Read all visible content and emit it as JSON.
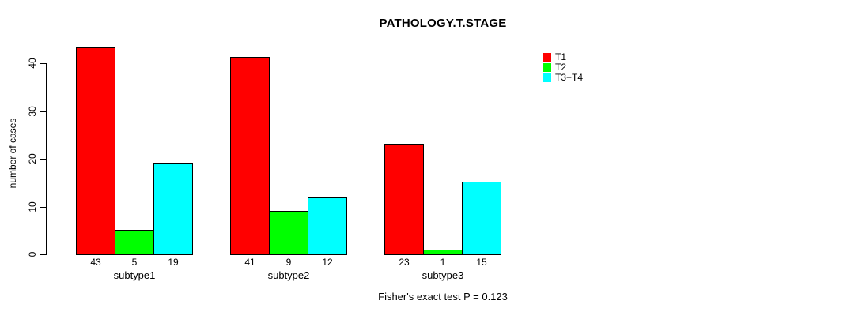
{
  "chart_data": {
    "type": "bar",
    "title": "PATHOLOGY.T.STAGE",
    "ylabel": "number of cases",
    "xlabel": "",
    "subtitle": "Fisher's exact test P = 0.123",
    "categories": [
      "subtype1",
      "subtype2",
      "subtype3"
    ],
    "series": [
      {
        "name": "T1",
        "color": "#ff0000",
        "values": [
          43,
          41,
          23
        ]
      },
      {
        "name": "T2",
        "color": "#00ff00",
        "values": [
          5,
          9,
          1
        ]
      },
      {
        "name": "T3+T4",
        "color": "#00ffff",
        "values": [
          19,
          12,
          15
        ]
      }
    ],
    "value_labels": [
      [
        43,
        5,
        19
      ],
      [
        41,
        9,
        12
      ],
      [
        23,
        1,
        15
      ]
    ],
    "yticks": [
      0,
      10,
      20,
      30,
      40
    ],
    "ylim": [
      0,
      44
    ],
    "grid": false,
    "legend_position": "top-right",
    "colors": {
      "background": "#ffffff",
      "axis": "#000000",
      "bar_border": "#000000"
    }
  }
}
